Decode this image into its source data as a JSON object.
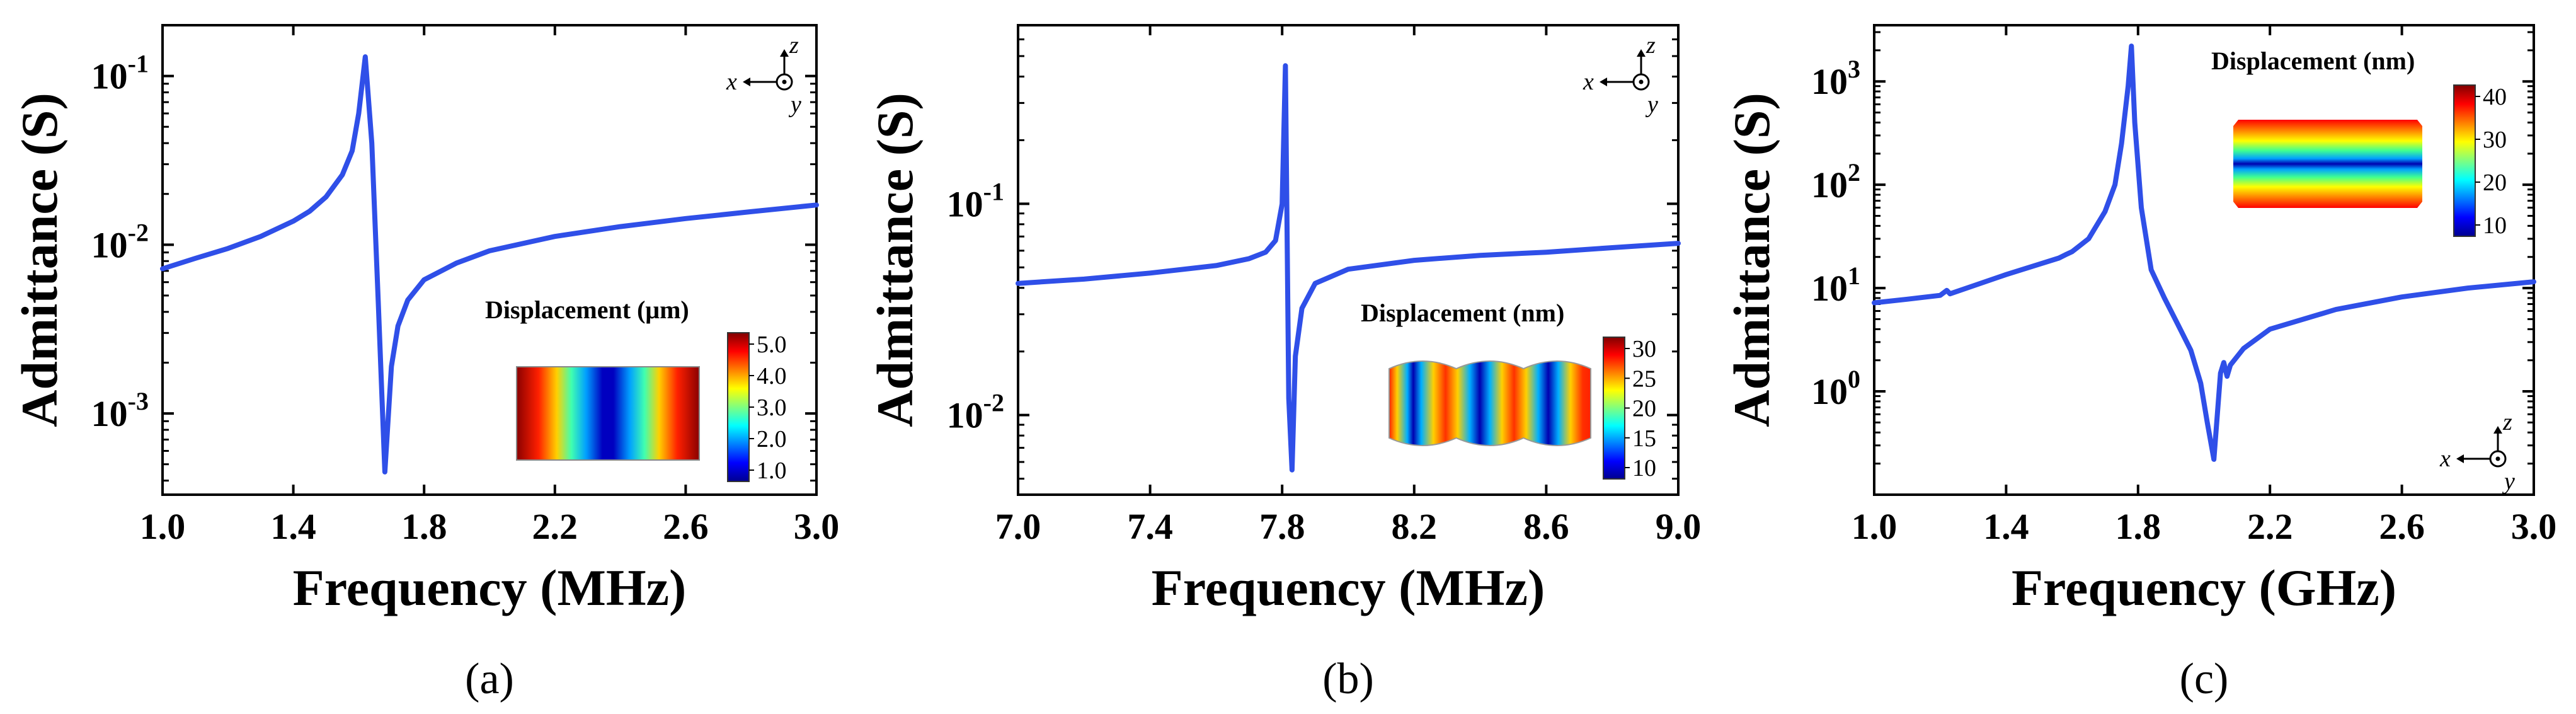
{
  "chart_data": [
    {
      "type": "line",
      "caption": "(a)",
      "xlabel": "Frequency (MHz)",
      "ylabel": "Admittance (S)",
      "xlim": [
        1.0,
        3.0
      ],
      "xticks": [
        "1.0",
        "1.4",
        "1.8",
        "2.2",
        "2.6",
        "3.0"
      ],
      "yscale": "log",
      "ylim": [
        0.00033,
        0.2
      ],
      "yticks": [
        {
          "label": "10",
          "exp": "-3",
          "value": 0.001
        },
        {
          "label": "10",
          "exp": "-2",
          "value": 0.01
        },
        {
          "label": "10",
          "exp": "-1",
          "value": 0.1
        }
      ],
      "color": "#2f4fe8",
      "series": [
        {
          "name": "admittance",
          "x": [
            1.0,
            1.1,
            1.2,
            1.3,
            1.4,
            1.45,
            1.5,
            1.55,
            1.58,
            1.6,
            1.62,
            1.64,
            1.66,
            1.68,
            1.7,
            1.72,
            1.75,
            1.8,
            1.9,
            2.0,
            2.2,
            2.4,
            2.6,
            2.8,
            3.0
          ],
          "y": [
            0.0072,
            0.0083,
            0.0095,
            0.0112,
            0.0138,
            0.0158,
            0.0192,
            0.026,
            0.036,
            0.06,
            0.13,
            0.04,
            0.0045,
            0.00045,
            0.0019,
            0.0033,
            0.0047,
            0.0062,
            0.0078,
            0.0092,
            0.0112,
            0.0128,
            0.0143,
            0.0157,
            0.0172
          ]
        }
      ],
      "inset": {
        "title": "Displacement (μm)",
        "colorbar_ticks": [
          "5.0",
          "4.0",
          "3.0",
          "2.0",
          "1.0"
        ],
        "pattern": "vertical-bands"
      },
      "axes_icon": {
        "h": "x",
        "v": "z",
        "d": "y"
      }
    },
    {
      "type": "line",
      "caption": "(b)",
      "xlabel": "Frequency (MHz)",
      "ylabel": "Admittance (S)",
      "xlim": [
        7.0,
        9.0
      ],
      "xticks": [
        "7.0",
        "7.4",
        "7.8",
        "8.2",
        "8.6",
        "9.0"
      ],
      "yscale": "log",
      "ylim": [
        0.0042,
        0.7
      ],
      "yticks": [
        {
          "label": "10",
          "exp": "-2",
          "value": 0.01
        },
        {
          "label": "10",
          "exp": "-1",
          "value": 0.1
        }
      ],
      "color": "#2f4fe8",
      "series": [
        {
          "name": "admittance",
          "x": [
            7.0,
            7.2,
            7.4,
            7.6,
            7.7,
            7.75,
            7.78,
            7.8,
            7.81,
            7.82,
            7.83,
            7.84,
            7.86,
            7.9,
            8.0,
            8.2,
            8.4,
            8.6,
            8.8,
            9.0
          ],
          "y": [
            0.042,
            0.044,
            0.047,
            0.051,
            0.055,
            0.059,
            0.067,
            0.1,
            0.45,
            0.012,
            0.0055,
            0.019,
            0.032,
            0.042,
            0.049,
            0.054,
            0.057,
            0.059,
            0.062,
            0.065
          ]
        }
      ],
      "inset": {
        "title": "Displacement (nm)",
        "colorbar_ticks": [
          "30",
          "25",
          "20",
          "15",
          "10"
        ],
        "pattern": "scalloped-bands"
      },
      "axes_icon": {
        "h": "x",
        "v": "z",
        "d": "y"
      }
    },
    {
      "type": "line",
      "caption": "(c)",
      "xlabel": "Frequency (GHz)",
      "ylabel": "Admittance (S)",
      "xlim": [
        1.0,
        3.0
      ],
      "xticks": [
        "1.0",
        "1.4",
        "1.8",
        "2.2",
        "2.6",
        "3.0"
      ],
      "yscale": "log",
      "ylim": [
        0.1,
        3500
      ],
      "yticks": [
        {
          "label": "10",
          "exp": "0",
          "value": 1
        },
        {
          "label": "10",
          "exp": "1",
          "value": 10
        },
        {
          "label": "10",
          "exp": "2",
          "value": 100
        },
        {
          "label": "10",
          "exp": "3",
          "value": 1000
        }
      ],
      "color": "#2f4fe8",
      "series": [
        {
          "name": "admittance",
          "x": [
            1.0,
            1.1,
            1.2,
            1.22,
            1.23,
            1.3,
            1.4,
            1.5,
            1.56,
            1.58,
            1.6,
            1.65,
            1.7,
            1.73,
            1.75,
            1.77,
            1.78,
            1.79,
            1.81,
            1.84,
            1.88,
            1.92,
            1.96,
            1.99,
            2.01,
            2.03,
            2.05,
            2.06,
            2.07,
            2.08,
            2.12,
            2.2,
            2.4,
            2.6,
            2.8,
            3.0
          ],
          "y": [
            7.2,
            7.8,
            8.5,
            9.5,
            8.8,
            10.5,
            13.5,
            17.0,
            19.5,
            21.0,
            22.5,
            30.0,
            55.0,
            100.0,
            250.0,
            900.0,
            2200.0,
            400.0,
            60.0,
            15.0,
            8.0,
            4.5,
            2.5,
            1.2,
            0.5,
            0.22,
            1.5,
            1.9,
            1.4,
            1.8,
            2.6,
            4.0,
            6.2,
            8.2,
            10.0,
            11.5
          ]
        }
      ],
      "inset": {
        "title": "Displacement (nm)",
        "colorbar_ticks": [
          "40",
          "30",
          "20",
          "10"
        ],
        "pattern": "horizontal-bands"
      },
      "axes_icon": {
        "h": "x",
        "v": "z",
        "d": "y"
      }
    }
  ]
}
